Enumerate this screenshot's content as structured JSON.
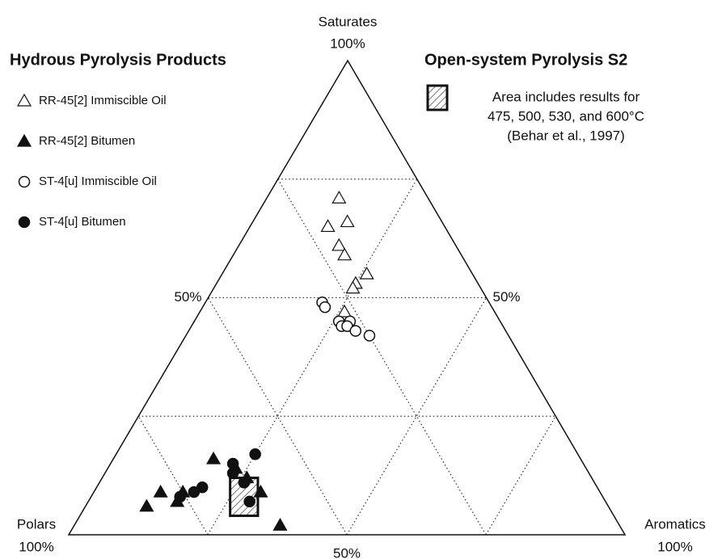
{
  "chart_data": {
    "type": "ternary",
    "legend_titles": [
      "Hydrous Pyrolysis Products",
      "Open-system Pyrolysis S2"
    ],
    "area_legend": [
      "Area includes results for",
      "475,  500, 530, and 600°C",
      "(Behar et al., 1997)"
    ],
    "axes": {
      "top": {
        "name": "Saturates",
        "max_label": "100%"
      },
      "left": {
        "name": "Polars",
        "max_label": "100%"
      },
      "right": {
        "name": "Aromatics",
        "max_label": "100%"
      }
    },
    "grid_ticks": [
      25,
      50,
      75
    ],
    "edge_labels": {
      "left": [
        {
          "value": 50,
          "label": "50%"
        }
      ],
      "right": [
        {
          "value": 50,
          "label": "50%"
        }
      ],
      "bottom": [
        {
          "value": 50,
          "label": "50%"
        }
      ]
    },
    "series": [
      {
        "name": "RR-45[2] Immiscible Oil",
        "marker": "triangle",
        "filled": false,
        "color": "#111111",
        "saturates": [
          71,
          65,
          66,
          61,
          59,
          55,
          53,
          52,
          47
        ],
        "aromatics": [
          13,
          14,
          17,
          18,
          20,
          26,
          25,
          25,
          26
        ],
        "polars": [
          16,
          21,
          17,
          21,
          21,
          19,
          22,
          23,
          27
        ]
      },
      {
        "name": "RR-45[2] Bitumen",
        "marker": "triangle",
        "filled": true,
        "color": "#111111",
        "saturates": [
          6,
          9,
          7,
          9,
          16,
          12,
          9,
          2,
          14
        ],
        "aromatics": [
          11,
          12,
          16,
          16,
          18,
          26,
          30,
          37,
          23
        ],
        "polars": [
          83,
          79,
          77,
          75,
          66,
          62,
          61,
          61,
          63
        ]
      },
      {
        "name": "ST-4[u] Immiscible Oil",
        "marker": "circle",
        "filled": false,
        "color": "#111111",
        "saturates": [
          49,
          48,
          45,
          45,
          44,
          44,
          43,
          42
        ],
        "aromatics": [
          21,
          22,
          26,
          28,
          27,
          28,
          30,
          33
        ],
        "polars": [
          30,
          30,
          29,
          27,
          29,
          28,
          27,
          25
        ]
      },
      {
        "name": "ST-4[u] Bitumen",
        "marker": "circle",
        "filled": true,
        "color": "#111111",
        "saturates": [
          17,
          15,
          13,
          10,
          9,
          8,
          11,
          7
        ],
        "aromatics": [
          25,
          22,
          23,
          19,
          18,
          16,
          26,
          29
        ],
        "polars": [
          58,
          63,
          64,
          71,
          73,
          76,
          63,
          64
        ]
      }
    ],
    "area": {
      "saturates": [
        12,
        4
      ],
      "aromatics": [
        23,
        32
      ],
      "polars": [
        65,
        64
      ]
    }
  }
}
